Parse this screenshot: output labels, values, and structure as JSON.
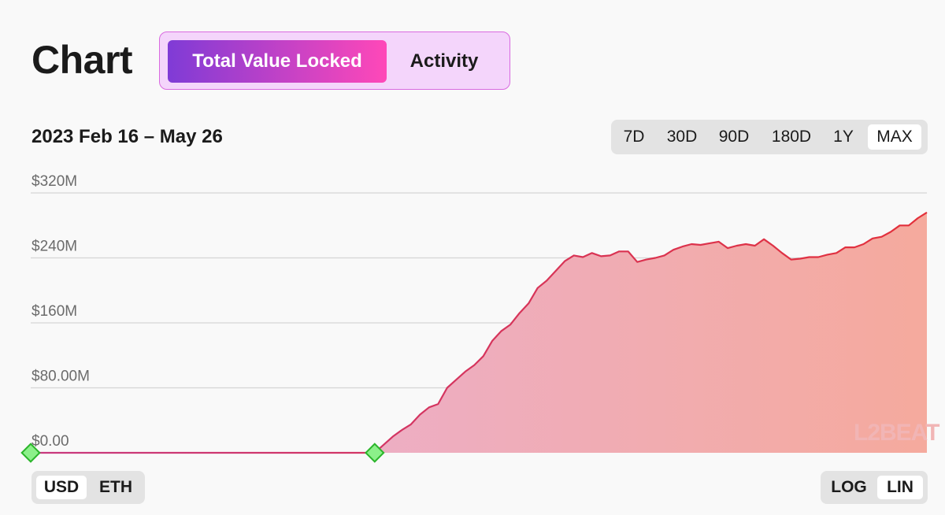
{
  "header": {
    "title": "Chart",
    "tabs": [
      {
        "label": "Total Value Locked",
        "active": true
      },
      {
        "label": "Activity",
        "active": false
      }
    ],
    "accent_gradient": [
      "#7f3bd6",
      "#ff48b8"
    ]
  },
  "date_range": "2023 Feb 16 – May 26",
  "range_buttons": [
    "7D",
    "30D",
    "90D",
    "180D",
    "1Y",
    "MAX"
  ],
  "range_selected": "MAX",
  "currency_buttons": [
    "USD",
    "ETH"
  ],
  "currency_selected": "USD",
  "scale_buttons": [
    "LOG",
    "LIN"
  ],
  "scale_selected": "LIN",
  "watermark": {
    "text": "L2BEAT",
    "color": "#f1b5b5"
  },
  "chart_data": {
    "type": "area",
    "title": "",
    "xlabel": "",
    "ylabel": "",
    "x_range": [
      "2023-02-16",
      "2023-05-26"
    ],
    "y_ticks": [
      "$0.00",
      "$80.00M",
      "$160M",
      "$240M",
      "$320M"
    ],
    "y_tick_values": [
      0,
      80,
      160,
      240,
      320
    ],
    "ylim": [
      0,
      320
    ],
    "y_unit": "USD millions",
    "grid": true,
    "markers": [
      {
        "day": 0,
        "value": 0
      },
      {
        "day": 38,
        "value": 0
      }
    ],
    "fill_gradient": [
      "#e8b0dc",
      "#f5aa9d"
    ],
    "line_gradient": [
      "#c8397f",
      "#e3303a"
    ],
    "series": [
      {
        "x": [
          0,
          38,
          39,
          40,
          41,
          42,
          43,
          44,
          45,
          46,
          47,
          48,
          49,
          50,
          51,
          52,
          53,
          54,
          55,
          56,
          57,
          58,
          59,
          60,
          61,
          62,
          63,
          64,
          65,
          66,
          67,
          68,
          69,
          70,
          71,
          72,
          73,
          74,
          75,
          76,
          77,
          78,
          79,
          80,
          81,
          82,
          83,
          84,
          85,
          86,
          87,
          88,
          89,
          90,
          91,
          92,
          93,
          94,
          95,
          96,
          97,
          98,
          99
        ],
        "values": [
          0,
          0,
          10,
          20,
          28,
          35,
          47,
          56,
          60,
          80,
          90,
          100,
          108,
          119,
          138,
          150,
          158,
          172,
          184,
          203,
          212,
          224,
          236,
          243,
          241,
          246,
          242,
          243,
          248,
          248,
          235,
          238,
          240,
          243,
          250,
          254,
          257,
          256,
          258,
          260,
          252,
          255,
          257,
          255,
          263,
          255,
          246,
          238,
          239,
          241,
          241,
          244,
          246,
          253,
          253,
          257,
          264,
          266,
          272,
          280,
          280,
          289,
          296
        ]
      }
    ]
  }
}
